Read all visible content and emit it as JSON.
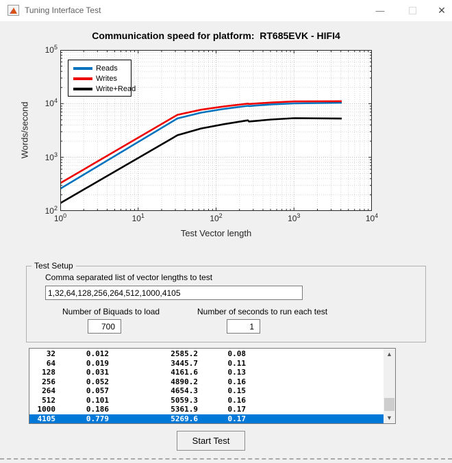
{
  "window": {
    "title": "Tuning Interface Test",
    "icon": "matlab-figure-icon",
    "controls": {
      "minimize_glyph": "—",
      "close_glyph": "✕"
    }
  },
  "chart": {
    "title": "Communication speed for platform:  RT685EVK - HIFI4",
    "xlabel": "Test Vector length",
    "ylabel": "Words/second",
    "x_tick_exponents": [
      0,
      1,
      2,
      3,
      4
    ],
    "y_tick_exponents": [
      2,
      3,
      4,
      5
    ]
  },
  "chart_data": {
    "type": "line",
    "title": "Communication speed for platform:  RT685EVK - HIFI4",
    "xlabel": "Test Vector length",
    "ylabel": "Words/second",
    "xscale": "log",
    "yscale": "log",
    "xlim": [
      1,
      10000
    ],
    "ylim": [
      100,
      100000
    ],
    "grid": true,
    "legend_position": "top-left",
    "x": [
      1,
      32,
      64,
      128,
      256,
      264,
      512,
      1000,
      4105
    ],
    "series": [
      {
        "name": "Reads",
        "color": "#0072BD",
        "values": [
          260,
          5300,
          6800,
          8000,
          9100,
          9000,
          9700,
          10100,
          10400
        ]
      },
      {
        "name": "Writes",
        "color": "#EE0000",
        "values": [
          330,
          6200,
          7700,
          8900,
          10000,
          9850,
          10500,
          11000,
          11100
        ]
      },
      {
        "name": "Write+Read",
        "color": "#000000",
        "values": [
          140,
          2585.2,
          3445.7,
          4161.6,
          4890.2,
          4654.3,
          5059.3,
          5361.9,
          5269.6
        ]
      }
    ]
  },
  "test_setup": {
    "group_label": "Test Setup",
    "vector_label": "Comma separated list of vector lengths to test",
    "vector_value": "1,32,64,128,256,264,512,1000,4105",
    "biquads_label": "Number of Biquads to load",
    "biquads_value": "700",
    "seconds_label": "Number of seconds to run each test",
    "seconds_value": "1"
  },
  "results_list": {
    "rows": [
      [
        "32",
        "0.012",
        "2585.2",
        "0.08"
      ],
      [
        "64",
        "0.019",
        "3445.7",
        "0.11"
      ],
      [
        "128",
        "0.031",
        "4161.6",
        "0.13"
      ],
      [
        "256",
        "0.052",
        "4890.2",
        "0.16"
      ],
      [
        "264",
        "0.057",
        "4654.3",
        "0.15"
      ],
      [
        "512",
        "0.101",
        "5059.3",
        "0.16"
      ],
      [
        "1000",
        "0.186",
        "5361.9",
        "0.17"
      ],
      [
        "4105",
        "0.779",
        "5269.6",
        "0.17"
      ]
    ],
    "selected_index": 7,
    "selection_color": "#0078d7"
  },
  "start_button": {
    "label": "Start Test"
  }
}
